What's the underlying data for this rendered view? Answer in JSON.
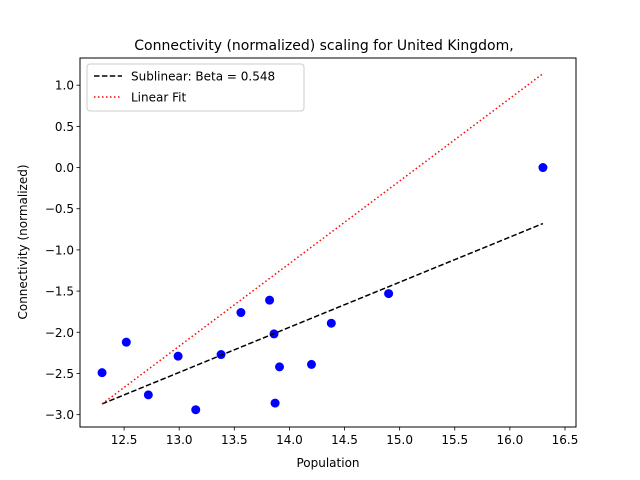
{
  "chart_data": {
    "type": "scatter",
    "title": "Connectivity (normalized) scaling for United Kingdom,",
    "xlabel": "Population",
    "ylabel": "Connectivity (normalized)",
    "xlim": [
      12.1,
      16.6
    ],
    "ylim": [
      -3.15,
      1.33
    ],
    "xticks": [
      12.5,
      13.0,
      13.5,
      14.0,
      14.5,
      15.0,
      15.5,
      16.0,
      16.5
    ],
    "yticks": [
      -3.0,
      -2.5,
      -2.0,
      -1.5,
      -1.0,
      -0.5,
      0.0,
      0.5,
      1.0
    ],
    "xtick_labels": [
      "12.5",
      "13.0",
      "13.5",
      "14.0",
      "14.5",
      "15.0",
      "15.5",
      "16.0",
      "16.5"
    ],
    "ytick_labels": [
      "−3.0",
      "−2.5",
      "−2.0",
      "−1.5",
      "−1.0",
      "−0.5",
      "0.0",
      "0.5",
      "1.0"
    ],
    "grid": false,
    "legend_position": "upper-left",
    "series": [
      {
        "kind": "scatter",
        "color": "#0000ff",
        "points": [
          {
            "x": 12.3,
            "y": -2.49
          },
          {
            "x": 12.52,
            "y": -2.12
          },
          {
            "x": 12.72,
            "y": -2.76
          },
          {
            "x": 12.99,
            "y": -2.29
          },
          {
            "x": 13.15,
            "y": -2.94
          },
          {
            "x": 13.38,
            "y": -2.27
          },
          {
            "x": 13.56,
            "y": -1.76
          },
          {
            "x": 13.82,
            "y": -1.61
          },
          {
            "x": 13.86,
            "y": -2.02
          },
          {
            "x": 13.87,
            "y": -2.86
          },
          {
            "x": 13.91,
            "y": -2.42
          },
          {
            "x": 14.2,
            "y": -2.39
          },
          {
            "x": 14.38,
            "y": -1.89
          },
          {
            "x": 14.9,
            "y": -1.53
          },
          {
            "x": 16.3,
            "y": 0.0
          }
        ]
      },
      {
        "kind": "line",
        "name": "Sublinear: Beta = 0.548",
        "color": "#000000",
        "dash": "dashed",
        "points": [
          {
            "x": 12.3,
            "y": -2.87
          },
          {
            "x": 16.3,
            "y": -0.68
          }
        ]
      },
      {
        "kind": "line",
        "name": "Linear Fit",
        "color": "#ff0000",
        "dash": "dotted",
        "points": [
          {
            "x": 12.3,
            "y": -2.87
          },
          {
            "x": 16.3,
            "y": 1.14
          }
        ]
      }
    ]
  }
}
